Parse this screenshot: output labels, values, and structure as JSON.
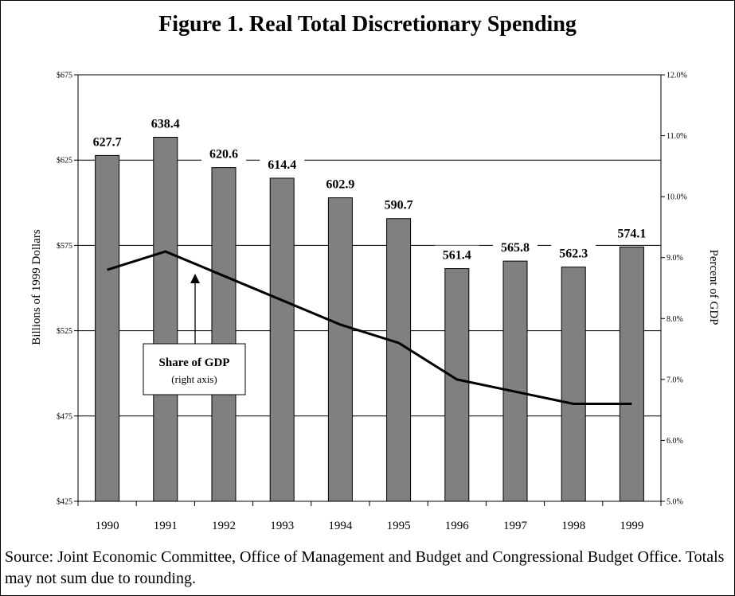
{
  "chart_data": {
    "type": "bar",
    "title": "Figure 1. Real Total Discretionary Spending",
    "categories": [
      "1990",
      "1991",
      "1992",
      "1993",
      "1994",
      "1995",
      "1996",
      "1997",
      "1998",
      "1999"
    ],
    "series": [
      {
        "axis": "left",
        "type": "bar",
        "values": [
          627.7,
          638.4,
          620.6,
          614.4,
          602.9,
          590.7,
          561.4,
          565.8,
          562.3,
          574.1
        ],
        "data_labels": [
          "627.7",
          "638.4",
          "620.6",
          "614.4",
          "602.9",
          "590.7",
          "561.4",
          "565.8",
          "562.3",
          "574.1"
        ],
        "color": "#808080"
      },
      {
        "axis": "right",
        "type": "line",
        "values": [
          8.8,
          9.1,
          8.7,
          8.3,
          7.9,
          7.6,
          7.0,
          6.8,
          6.6,
          6.6
        ],
        "color": "#000000"
      }
    ],
    "y_left": {
      "label": "Billions of 1999 Dollars",
      "range": [
        425,
        675
      ],
      "ticks": [
        425,
        475,
        525,
        575,
        625,
        675
      ],
      "tick_labels": [
        "$425",
        "$475",
        "$525",
        "$575",
        "$625",
        "$675"
      ]
    },
    "y_right": {
      "label": "Percent of GDP",
      "range": [
        5.0,
        12.0
      ],
      "ticks": [
        5,
        6,
        7,
        8,
        9,
        10,
        11,
        12
      ],
      "tick_labels": [
        "5.0%",
        "6.0%",
        "7.0%",
        "8.0%",
        "9.0%",
        "10.0%",
        "11.0%",
        "12.0%"
      ]
    },
    "grid": true,
    "annotation": {
      "title": "Share of GDP",
      "subtitle": "(right axis)"
    }
  },
  "source_note": "Source: Joint Economic Committee, Office of Management and Budget and Congressional Budget Office. Totals may not sum due to rounding."
}
